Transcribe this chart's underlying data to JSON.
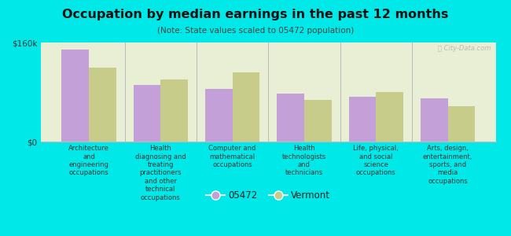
{
  "title": "Occupation by median earnings in the past 12 months",
  "subtitle": "(Note: State values scaled to 05472 population)",
  "background_color": "#00e8e8",
  "plot_bg_color": "#e8efd4",
  "categories": [
    "Architecture\nand\nengineering\noccupations",
    "Health\ndiagnosing and\ntreating\npractitioners\nand other\ntechnical\noccupations",
    "Computer and\nmathematical\noccupations",
    "Health\ntechnologists\nand\ntechnicians",
    "Life, physical,\nand social\nscience\noccupations",
    "Arts, design,\nentertainment,\nsports, and\nmedia\noccupations"
  ],
  "values_05472": [
    148000,
    92000,
    85000,
    77000,
    72000,
    70000
  ],
  "values_vermont": [
    120000,
    100000,
    112000,
    67000,
    80000,
    57000
  ],
  "color_05472": "#c4a0d8",
  "color_vermont": "#c8cc8a",
  "ylim": [
    0,
    160000
  ],
  "yticks": [
    0,
    160000
  ],
  "ytick_labels": [
    "$0",
    "$160k"
  ],
  "legend_05472": "05472",
  "legend_vermont": "Vermont",
  "bar_width": 0.38,
  "watermark": "Ⓠ City-Data.com"
}
